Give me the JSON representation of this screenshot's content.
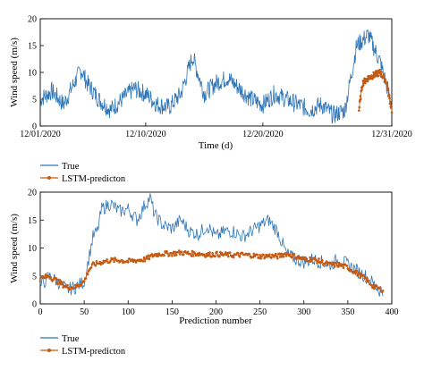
{
  "chart_data": [
    {
      "type": "line",
      "ylabel": "Wind speed (m/s)",
      "xlabel": "Time (d)",
      "ylim": [
        0,
        20
      ],
      "yticks": [
        "0",
        "5",
        "10",
        "15",
        "20"
      ],
      "xticks": [
        "12/01/2020",
        "12/10/2020",
        "12/20/2020",
        "12/31/2020"
      ],
      "x_range_days": [
        0,
        30
      ],
      "grid": false,
      "legend_position": "below",
      "series": [
        {
          "name": "True",
          "color": "#2e75b6",
          "x_days": [
            0,
            1,
            2,
            3,
            3.5,
            4,
            5,
            6,
            7,
            8,
            9,
            10,
            11,
            12,
            13,
            14,
            15,
            16,
            17,
            18,
            19,
            20,
            21,
            22,
            23,
            24,
            25,
            26,
            27,
            28,
            29,
            30
          ],
          "values": [
            5,
            6.5,
            4,
            8.5,
            10.5,
            8,
            5,
            3,
            5,
            7,
            6,
            4,
            3.5,
            6,
            13,
            6,
            8,
            9,
            7,
            5,
            4,
            6,
            5,
            4,
            3,
            4,
            2,
            3,
            15,
            17,
            12,
            4
          ]
        },
        {
          "name": "LSTM-predicton",
          "color": "#c55a11",
          "marker": "circle",
          "x_days": [
            27.2,
            27.5,
            28,
            28.5,
            29,
            29.5,
            30
          ],
          "values": [
            3,
            8,
            9,
            9.5,
            10,
            8.5,
            3
          ]
        }
      ]
    },
    {
      "type": "line",
      "ylabel": "Wind speed (m/s)",
      "xlabel": "Prediction number",
      "xlim": [
        0,
        400
      ],
      "ylim": [
        0,
        20
      ],
      "yticks": [
        "0",
        "5",
        "10",
        "15",
        "20"
      ],
      "xticks": [
        "0",
        "50",
        "100",
        "150",
        "200",
        "250",
        "300",
        "350",
        "400"
      ],
      "grid": false,
      "legend_position": "below",
      "series": [
        {
          "name": "True",
          "color": "#2e75b6",
          "x": [
            0,
            10,
            20,
            30,
            40,
            50,
            55,
            60,
            65,
            70,
            80,
            90,
            100,
            110,
            120,
            125,
            130,
            140,
            150,
            160,
            170,
            180,
            190,
            200,
            210,
            220,
            230,
            240,
            250,
            260,
            270,
            280,
            290,
            300,
            310,
            320,
            330,
            340,
            350,
            360,
            370,
            380,
            385,
            390
          ],
          "values": [
            3,
            5,
            4,
            2.5,
            3,
            4,
            8,
            12,
            13,
            17,
            18,
            16.5,
            17,
            15,
            18,
            19,
            16,
            14,
            13.5,
            15,
            13,
            12.5,
            14,
            12,
            13,
            13,
            12,
            13,
            14,
            15,
            13,
            9,
            8,
            7.5,
            8,
            7.5,
            7,
            8,
            7,
            6,
            5,
            3.5,
            2.5,
            2
          ]
        },
        {
          "name": "LSTM-predicton",
          "color": "#c55a11",
          "marker": "circle",
          "x": [
            0,
            10,
            20,
            30,
            40,
            50,
            55,
            60,
            70,
            80,
            90,
            100,
            110,
            120,
            130,
            140,
            150,
            160,
            170,
            180,
            190,
            200,
            210,
            220,
            230,
            240,
            250,
            260,
            270,
            280,
            290,
            300,
            310,
            320,
            330,
            340,
            350,
            360,
            370,
            380,
            390
          ],
          "values": [
            4.5,
            5,
            4,
            3,
            3,
            4,
            6,
            7,
            7.5,
            7.8,
            7.8,
            7.6,
            7.8,
            8,
            8.8,
            9,
            9,
            9.2,
            9,
            9,
            8.8,
            8.9,
            8.8,
            8.7,
            8.8,
            8.7,
            8.5,
            8.6,
            8.5,
            9,
            8.5,
            8,
            8,
            7.5,
            7,
            7,
            6.5,
            5.5,
            4.5,
            3,
            2.5
          ]
        }
      ]
    }
  ],
  "legends": [
    {
      "items": [
        "True",
        "LSTM-predicton"
      ]
    },
    {
      "items": [
        "True",
        "LSTM-predicton"
      ]
    }
  ]
}
